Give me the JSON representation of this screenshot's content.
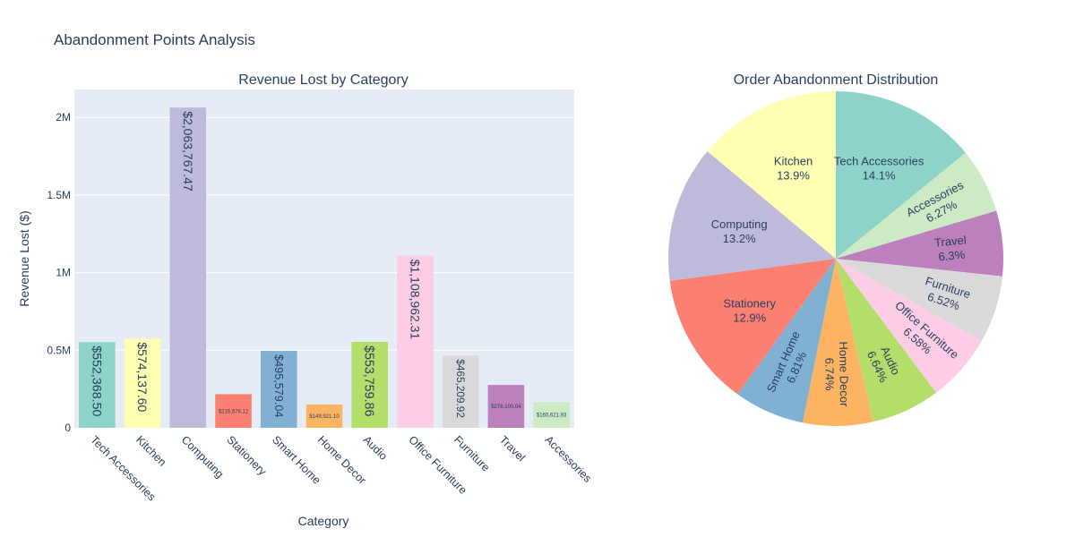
{
  "title": "Abandonment Points Analysis",
  "chart_data": [
    {
      "type": "bar",
      "title": "Revenue Lost by Category",
      "xlabel": "Category",
      "ylabel": "Revenue Lost ($)",
      "ylim": [
        0,
        2180000
      ],
      "yticks": [
        {
          "value": 0,
          "label": "0"
        },
        {
          "value": 500000,
          "label": "0.5M"
        },
        {
          "value": 1000000,
          "label": "1M"
        },
        {
          "value": 1500000,
          "label": "1.5M"
        },
        {
          "value": 2000000,
          "label": "2M"
        }
      ],
      "grid": true,
      "categories": [
        "Tech Accessories",
        "Kitchen",
        "Computing",
        "Stationery",
        "Smart Home",
        "Home Decor",
        "Audio",
        "Office Furniture",
        "Furniture",
        "Travel",
        "Accessories"
      ],
      "values": [
        552368.5,
        574137.6,
        2063767.47,
        216676.12,
        495579.04,
        149921.1,
        553759.86,
        1108962.31,
        465209.92,
        276100.04,
        165621.93
      ],
      "data_labels": [
        "$552,368.50",
        "$574,137.60",
        "$2,063,767.47",
        "$216,676.12",
        "$495,579.04",
        "$149,921.10",
        "$553,759.86",
        "$1,108,962.31",
        "$465,209.92",
        "$276,100.04",
        "$165,621.93"
      ],
      "colors": [
        "#8dd3c7",
        "#ffffb3",
        "#bebada",
        "#fb8072",
        "#80b1d3",
        "#fdb462",
        "#b3de69",
        "#fccde5",
        "#d9d9d9",
        "#bc80bd",
        "#ccebc5"
      ]
    },
    {
      "type": "pie",
      "title": "Order Abandonment Distribution",
      "slices": [
        {
          "label": "Tech Accessories",
          "percent": 14.1,
          "text": "14.1%",
          "color": "#8dd3c7"
        },
        {
          "label": "Accessories",
          "percent": 6.27,
          "text": "6.27%",
          "color": "#ccebc5"
        },
        {
          "label": "Travel",
          "percent": 6.3,
          "text": "6.3%",
          "color": "#bc80bd"
        },
        {
          "label": "Furniture",
          "percent": 6.52,
          "text": "6.52%",
          "color": "#d9d9d9"
        },
        {
          "label": "Office Furniture",
          "percent": 6.58,
          "text": "6.58%",
          "color": "#fccde5"
        },
        {
          "label": "Audio",
          "percent": 6.64,
          "text": "6.64%",
          "color": "#b3de69"
        },
        {
          "label": "Home Decor",
          "percent": 6.74,
          "text": "6.74%",
          "color": "#fdb462"
        },
        {
          "label": "Smart Home",
          "percent": 6.81,
          "text": "6.81%",
          "color": "#80b1d3"
        },
        {
          "label": "Stationery",
          "percent": 12.9,
          "text": "12.9%",
          "color": "#fb8072"
        },
        {
          "label": "Computing",
          "percent": 13.2,
          "text": "13.2%",
          "color": "#bebada"
        },
        {
          "label": "Kitchen",
          "percent": 13.9,
          "text": "13.9%",
          "color": "#ffffb3"
        }
      ]
    }
  ]
}
